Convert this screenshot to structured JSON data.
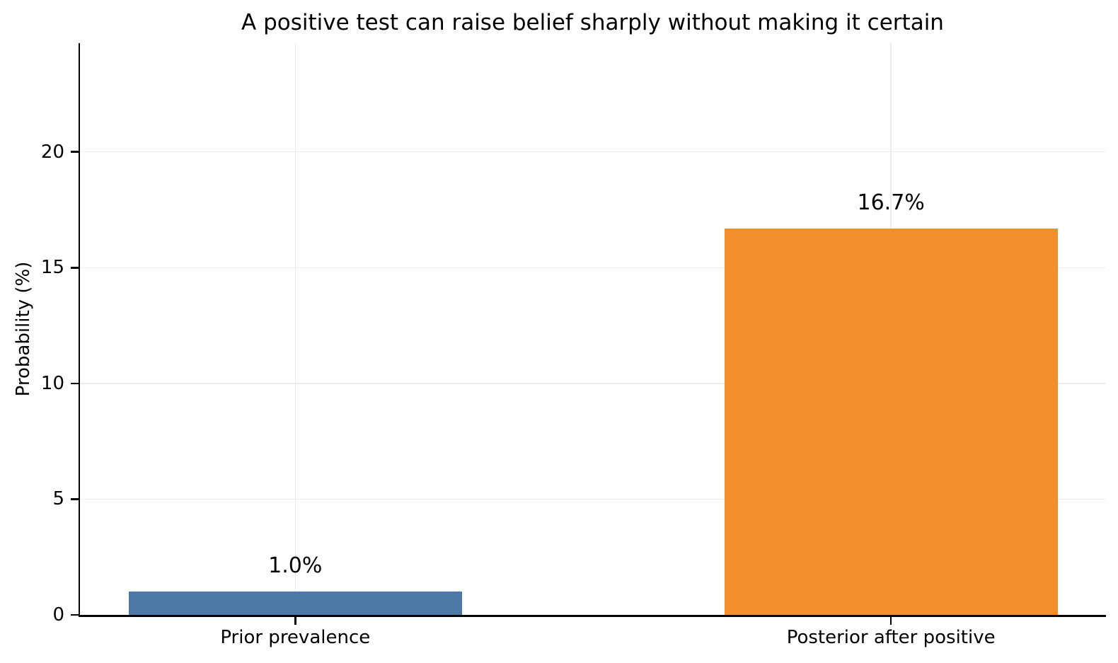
{
  "chart_data": {
    "type": "bar",
    "title": "A positive test can raise belief sharply without making it certain",
    "ylabel": "Probability (%)",
    "xlabel": "",
    "categories": [
      "Prior prevalence",
      "Posterior after positive"
    ],
    "values": [
      1.0,
      16.7
    ],
    "bar_labels": [
      "1.0%",
      "16.7%"
    ],
    "bar_colors": [
      "#4E79A7",
      "#F28E2B"
    ],
    "ytick_labels": [
      "0",
      "5",
      "10",
      "15",
      "20"
    ],
    "ytick_values": [
      0,
      5,
      10,
      15,
      20
    ],
    "ylim": [
      0,
      24.7
    ],
    "grid": true,
    "legend_position": "none"
  }
}
